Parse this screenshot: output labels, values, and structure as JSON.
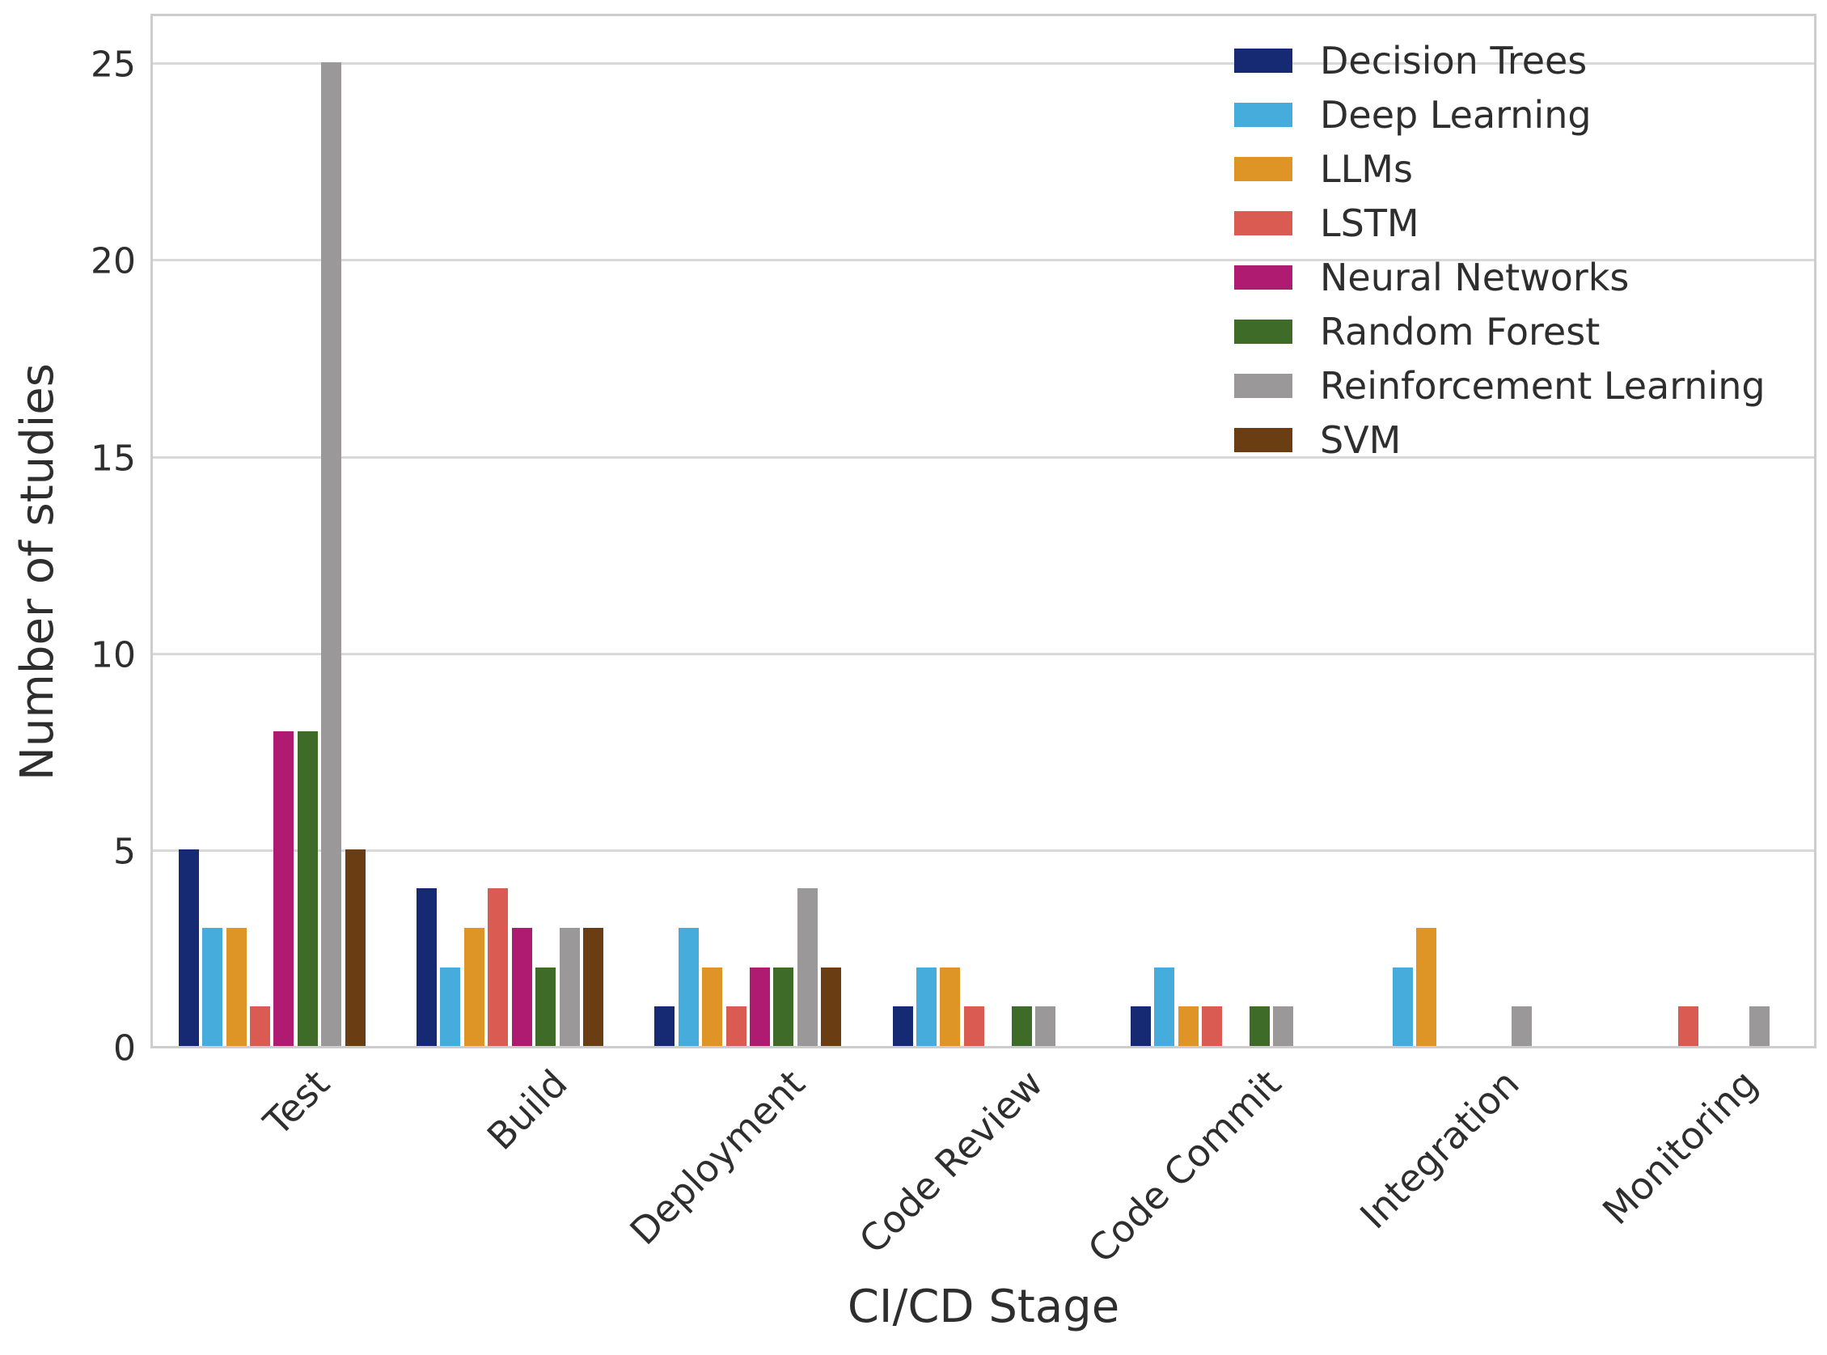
{
  "chart_data": {
    "type": "bar",
    "title": "",
    "xlabel": "CI/CD Stage",
    "ylabel": "Number of studies",
    "categories": [
      "Test",
      "Build",
      "Deployment",
      "Code Review",
      "Code Commit",
      "Integration",
      "Monitoring"
    ],
    "series": [
      {
        "name": "Decision Trees",
        "color": "#162a73",
        "values": [
          5,
          4,
          1,
          1,
          1,
          0,
          0
        ]
      },
      {
        "name": "Deep Learning",
        "color": "#46acdc",
        "values": [
          3,
          2,
          3,
          2,
          2,
          2,
          0
        ]
      },
      {
        "name": "LLMs",
        "color": "#de9526",
        "values": [
          3,
          3,
          2,
          2,
          1,
          3,
          0
        ]
      },
      {
        "name": "LSTM",
        "color": "#d95b52",
        "values": [
          1,
          4,
          1,
          1,
          1,
          0,
          1
        ]
      },
      {
        "name": "Neural Networks",
        "color": "#b01b72",
        "values": [
          8,
          3,
          2,
          0,
          0,
          0,
          0
        ]
      },
      {
        "name": "Random Forest",
        "color": "#3e6b28",
        "values": [
          8,
          2,
          2,
          1,
          1,
          0,
          0
        ]
      },
      {
        "name": "Reinforcement Learning",
        "color": "#9a9899",
        "values": [
          25,
          3,
          4,
          1,
          1,
          1,
          1
        ]
      },
      {
        "name": "SVM",
        "color": "#6b3d12",
        "values": [
          5,
          3,
          2,
          0,
          0,
          0,
          0
        ]
      }
    ],
    "yticks": [
      0,
      5,
      10,
      15,
      20,
      25
    ],
    "ylim": [
      0,
      26.3
    ],
    "grid": "horizontal",
    "legend_position": "upper-right-inside"
  }
}
